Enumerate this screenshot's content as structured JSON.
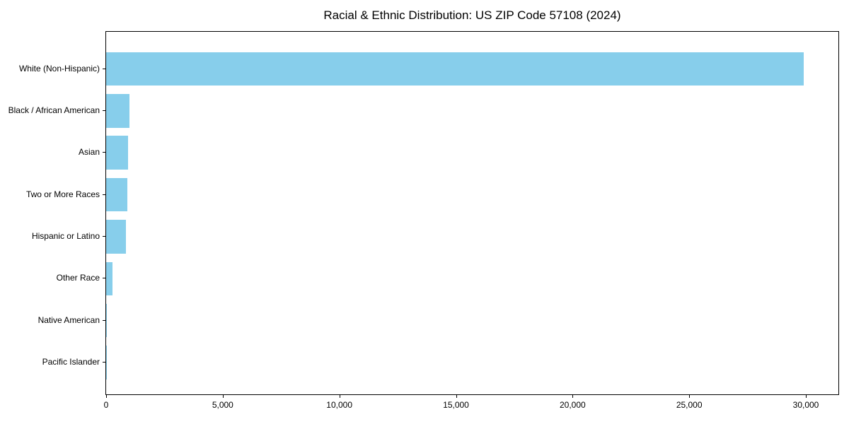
{
  "chart_data": {
    "type": "bar",
    "orientation": "horizontal",
    "title": "Racial & Ethnic Distribution: US ZIP Code 57108 (2024)",
    "categories": [
      "White (Non-Hispanic)",
      "Black / African American",
      "Asian",
      "Two or More Races",
      "Hispanic or Latino",
      "Other Race",
      "Native American",
      "Pacific Islander"
    ],
    "values": [
      29900,
      1000,
      940,
      920,
      840,
      270,
      30,
      10
    ],
    "xlabel": "",
    "ylabel": "",
    "xlim": [
      0,
      31395
    ],
    "x_ticks": [
      0,
      5000,
      10000,
      15000,
      20000,
      25000,
      30000
    ],
    "x_tick_labels": [
      "0",
      "5,000",
      "10,000",
      "15,000",
      "20,000",
      "25,000",
      "30,000"
    ],
    "bar_color": "#87CEEB",
    "background_color": "#ffffff",
    "axis_color": "#000000",
    "grid": false,
    "legend": "none"
  }
}
